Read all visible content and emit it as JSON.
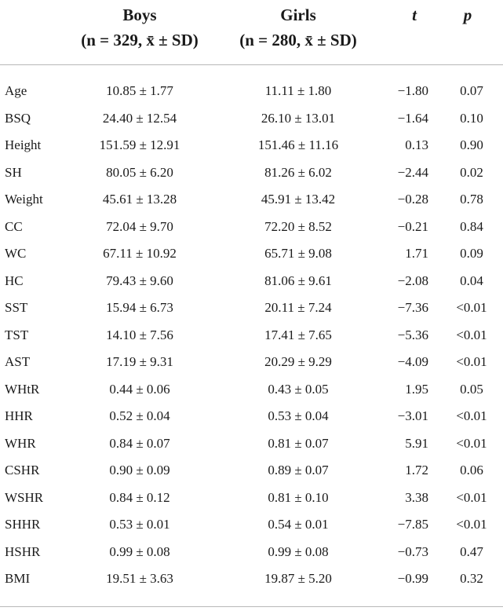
{
  "headers": {
    "boys_title": "Boys",
    "boys_sub": "(n = 329, x̄ ± SD)",
    "girls_title": "Girls",
    "girls_sub": "(n = 280, x̄ ± SD)",
    "t": "t",
    "p": "p"
  },
  "rows": [
    {
      "variable": "Age",
      "boys": "10.85 ± 1.77",
      "girls": "11.11 ± 1.80",
      "t": "−1.80",
      "p": "0.07"
    },
    {
      "variable": "BSQ",
      "boys": "24.40 ± 12.54",
      "girls": "26.10 ± 13.01",
      "t": "−1.64",
      "p": "0.10"
    },
    {
      "variable": "Height",
      "boys": "151.59 ± 12.91",
      "girls": "151.46 ± 11.16",
      "t": "0.13",
      "p": "0.90"
    },
    {
      "variable": "SH",
      "boys": "80.05 ± 6.20",
      "girls": "81.26 ± 6.02",
      "t": "−2.44",
      "p": "0.02"
    },
    {
      "variable": "Weight",
      "boys": "45.61 ± 13.28",
      "girls": "45.91 ± 13.42",
      "t": "−0.28",
      "p": "0.78"
    },
    {
      "variable": "CC",
      "boys": "72.04 ± 9.70",
      "girls": "72.20 ± 8.52",
      "t": "−0.21",
      "p": "0.84"
    },
    {
      "variable": "WC",
      "boys": "67.11 ± 10.92",
      "girls": "65.71 ± 9.08",
      "t": "1.71",
      "p": "0.09"
    },
    {
      "variable": "HC",
      "boys": "79.43 ± 9.60",
      "girls": "81.06 ± 9.61",
      "t": "−2.08",
      "p": "0.04"
    },
    {
      "variable": "SST",
      "boys": "15.94 ± 6.73",
      "girls": "20.11 ± 7.24",
      "t": "−7.36",
      "p": "<0.01"
    },
    {
      "variable": "TST",
      "boys": "14.10 ± 7.56",
      "girls": "17.41 ± 7.65",
      "t": "−5.36",
      "p": "<0.01"
    },
    {
      "variable": "AST",
      "boys": "17.19 ± 9.31",
      "girls": "20.29 ± 9.29",
      "t": "−4.09",
      "p": "<0.01"
    },
    {
      "variable": "WHtR",
      "boys": "0.44 ± 0.06",
      "girls": "0.43 ± 0.05",
      "t": "1.95",
      "p": "0.05"
    },
    {
      "variable": "HHR",
      "boys": "0.52 ± 0.04",
      "girls": "0.53 ± 0.04",
      "t": "−3.01",
      "p": "<0.01"
    },
    {
      "variable": "WHR",
      "boys": "0.84 ± 0.07",
      "girls": "0.81 ± 0.07",
      "t": "5.91",
      "p": "<0.01"
    },
    {
      "variable": "CSHR",
      "boys": "0.90 ± 0.09",
      "girls": "0.89 ± 0.07",
      "t": "1.72",
      "p": "0.06"
    },
    {
      "variable": "WSHR",
      "boys": "0.84 ± 0.12",
      "girls": "0.81 ± 0.10",
      "t": "3.38",
      "p": "<0.01"
    },
    {
      "variable": "SHHR",
      "boys": "0.53 ± 0.01",
      "girls": "0.54 ± 0.01",
      "t": "−7.85",
      "p": "<0.01"
    },
    {
      "variable": "HSHR",
      "boys": "0.99 ± 0.08",
      "girls": "0.99 ± 0.08",
      "t": "−0.73",
      "p": "0.47"
    },
    {
      "variable": "BMI",
      "boys": "19.51 ± 3.63",
      "girls": "19.87 ± 5.20",
      "t": "−0.99",
      "p": "0.32"
    }
  ]
}
